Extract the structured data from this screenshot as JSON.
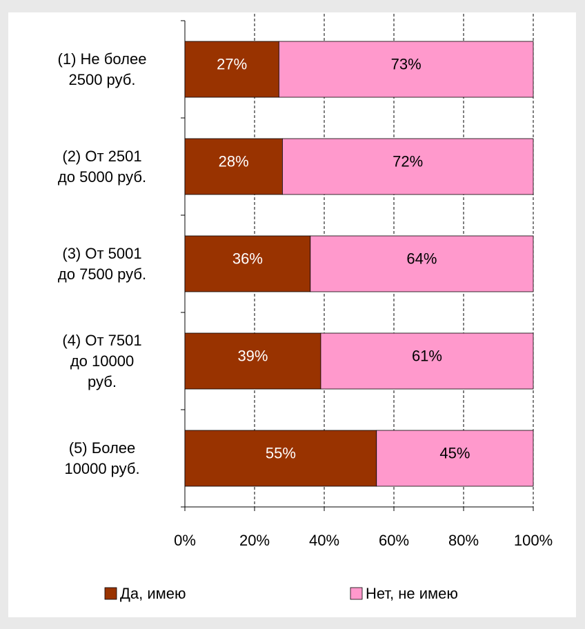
{
  "chart_data": {
    "type": "stacked_barh",
    "categories": [
      "(1) Не более\n2500 руб.",
      "(2) От 2501\nдо 5000 руб.",
      "(3) От 5001\nдо 7500 руб.",
      "(4) От 7501\nдо 10000\nруб.",
      "(5) Более\n10000 руб."
    ],
    "series": [
      {
        "name": "Да, имею",
        "color": "#993300",
        "label_color": "#ffffff",
        "values": [
          27,
          28,
          36,
          39,
          55
        ],
        "value_labels": [
          "27%",
          "28%",
          "36%",
          "39%",
          "55%"
        ]
      },
      {
        "name": "Нет, не имею",
        "color": "#ff99cc",
        "label_color": "#000000",
        "values": [
          73,
          72,
          64,
          61,
          45
        ],
        "value_labels": [
          "73%",
          "72%",
          "64%",
          "61%",
          "45%"
        ]
      }
    ],
    "xlim": [
      0,
      100
    ],
    "xticks": [
      {
        "value": 0,
        "label": "0%"
      },
      {
        "value": 20,
        "label": "20%"
      },
      {
        "value": 40,
        "label": "40%"
      },
      {
        "value": 60,
        "label": "60%"
      },
      {
        "value": 80,
        "label": "80%"
      },
      {
        "value": 100,
        "label": "100%"
      }
    ],
    "grid": true,
    "legend": "bottom"
  }
}
